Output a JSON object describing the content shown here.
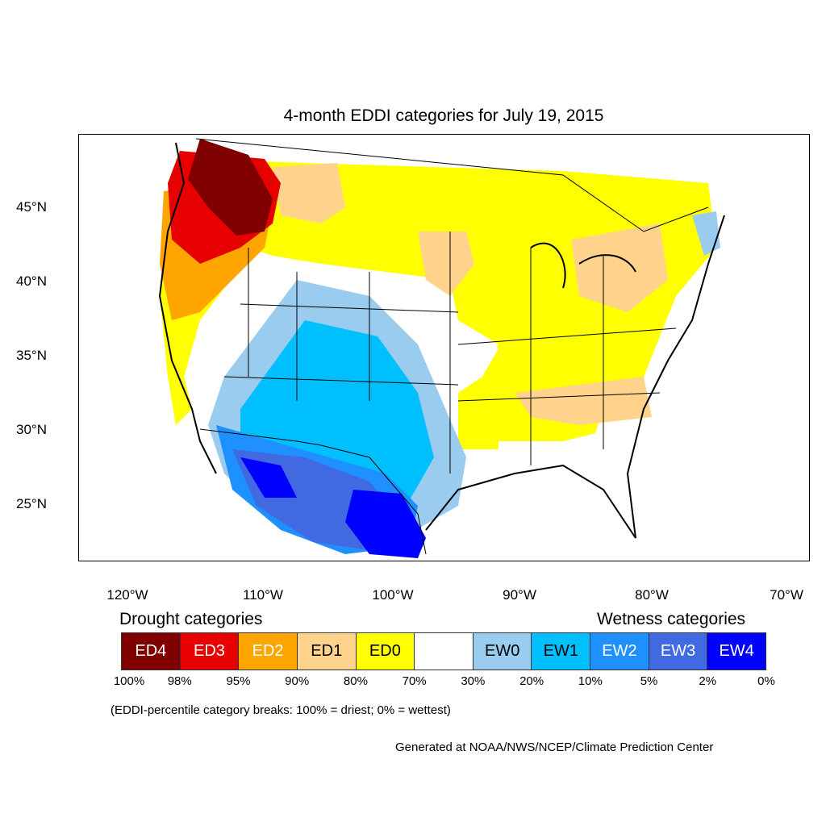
{
  "title": "4-month EDDI categories for July 19, 2015",
  "y_ticks": [
    "45°N",
    "40°N",
    "35°N",
    "30°N",
    "25°N"
  ],
  "x_ticks": [
    "120°W",
    "110°W",
    "100°W",
    "90°W",
    "80°W",
    "70°W"
  ],
  "legend": {
    "drought_heading": "Drought categories",
    "wetness_heading": "Wetness categories",
    "categories": [
      {
        "label": "ED4",
        "color": "#800000",
        "text_color": "#ffffff"
      },
      {
        "label": "ED3",
        "color": "#e60000",
        "text_color": "#ffffff"
      },
      {
        "label": "ED2",
        "color": "#ffa500",
        "text_color": "#ffffff"
      },
      {
        "label": "ED1",
        "color": "#ffd38c",
        "text_color": "#000000"
      },
      {
        "label": "ED0",
        "color": "#ffff00",
        "text_color": "#000000"
      },
      {
        "label": "",
        "color": "#ffffff",
        "text_color": "#000000"
      },
      {
        "label": "EW0",
        "color": "#99ccee",
        "text_color": "#000000"
      },
      {
        "label": "EW1",
        "color": "#00bfff",
        "text_color": "#000000"
      },
      {
        "label": "EW2",
        "color": "#1e90ff",
        "text_color": "#ffffff"
      },
      {
        "label": "EW3",
        "color": "#4169e1",
        "text_color": "#ffffff"
      },
      {
        "label": "EW4",
        "color": "#0000ff",
        "text_color": "#ffffff"
      }
    ],
    "breaks": [
      "100%",
      "98%",
      "95%",
      "90%",
      "80%",
      "70%",
      "30%",
      "20%",
      "10%",
      "5%",
      "2%",
      "0%"
    ]
  },
  "note": "(EDDI-percentile category breaks: 100% = driest; 0% = wettest)",
  "credit": "Generated at NOAA/NWS/NCEP/Climate Prediction Center"
}
